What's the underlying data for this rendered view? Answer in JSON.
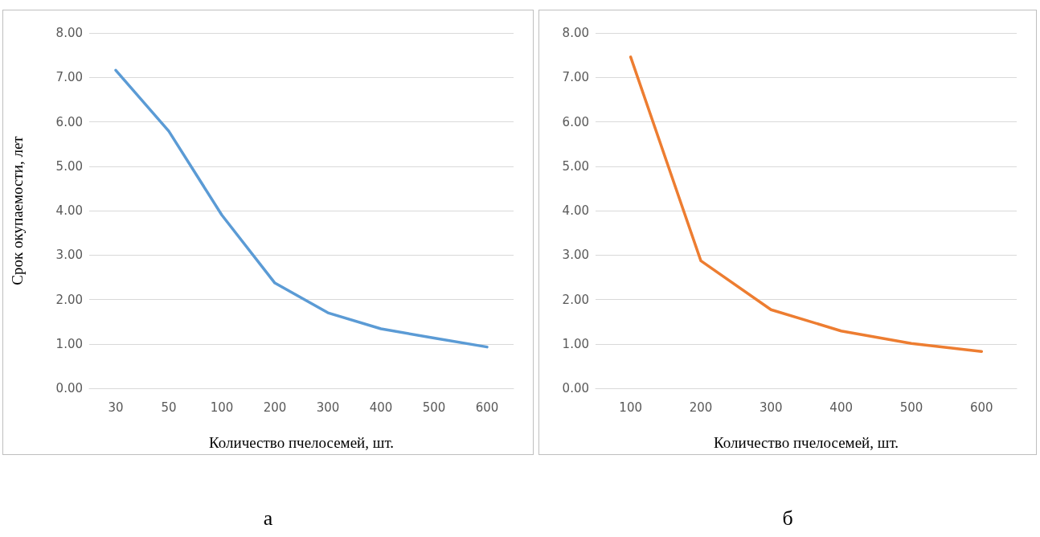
{
  "chart_data": [
    {
      "type": "line",
      "ylabel": "Срок окупаемости, лет",
      "xlabel": "Количество пчелосемей, шт.",
      "annotations": [
        "а"
      ],
      "categories": [
        "30",
        "50",
        "100",
        "200",
        "300",
        "400",
        "500",
        "600"
      ],
      "series": [
        {
          "color": "#5b9bd5",
          "values": [
            7.16,
            5.79,
            3.9,
            2.37,
            1.7,
            1.34,
            1.13,
            0.93
          ]
        }
      ],
      "ylim": [
        0,
        8
      ],
      "yticks": [
        {
          "value": 0,
          "label": "0.00"
        },
        {
          "value": 1,
          "label": "1.00"
        },
        {
          "value": 2,
          "label": "2.00"
        },
        {
          "value": 3,
          "label": "3.00"
        },
        {
          "value": 4,
          "label": "4.00"
        },
        {
          "value": 5,
          "label": "5.00"
        },
        {
          "value": 6,
          "label": "6.00"
        },
        {
          "value": 7,
          "label": "7.00"
        },
        {
          "value": 8,
          "label": "8.00"
        }
      ],
      "grid": "y",
      "marker": "none",
      "line_style": "solid"
    },
    {
      "type": "line",
      "xlabel": "Количество пчелосемей, шт.",
      "annotations": [
        "б"
      ],
      "categories": [
        "100",
        "200",
        "300",
        "400",
        "500",
        "600"
      ],
      "series": [
        {
          "color": "#ed7d31",
          "values": [
            7.46,
            2.87,
            1.77,
            1.29,
            1.01,
            0.83
          ]
        }
      ],
      "ylim": [
        0,
        8
      ],
      "yticks": [
        {
          "value": 0,
          "label": "0.00"
        },
        {
          "value": 1,
          "label": "1.00"
        },
        {
          "value": 2,
          "label": "2.00"
        },
        {
          "value": 3,
          "label": "3.00"
        },
        {
          "value": 4,
          "label": "4.00"
        },
        {
          "value": 5,
          "label": "5.00"
        },
        {
          "value": 6,
          "label": "6.00"
        },
        {
          "value": 7,
          "label": "7.00"
        },
        {
          "value": 8,
          "label": "8.00"
        }
      ],
      "grid": "y",
      "marker": "none",
      "line_style": "solid"
    }
  ]
}
